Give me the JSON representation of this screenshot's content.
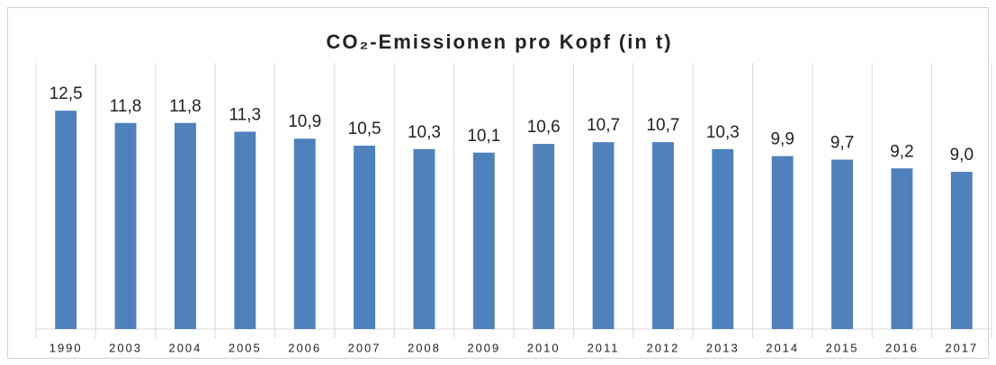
{
  "chart_data": {
    "type": "bar",
    "title": "CO₂-Emissionen pro Kopf (in t)",
    "categories": [
      "1990",
      "2003",
      "2004",
      "2005",
      "2006",
      "2007",
      "2008",
      "2009",
      "2010",
      "2011",
      "2012",
      "2013",
      "2014",
      "2015",
      "2016",
      "2017"
    ],
    "values": [
      12.5,
      11.8,
      11.8,
      11.3,
      10.9,
      10.5,
      10.3,
      10.1,
      10.6,
      10.7,
      10.7,
      10.3,
      9.9,
      9.7,
      9.2,
      9.0
    ],
    "value_labels": [
      "12,5",
      "11,8",
      "11,8",
      "11,3",
      "10,9",
      "10,5",
      "10,3",
      "10,1",
      "10,6",
      "10,7",
      "10,7",
      "10,3",
      "9,9",
      "9,7",
      "9,2",
      "9,0"
    ],
    "color": "#4f81bd",
    "ylim": [
      0,
      14
    ]
  }
}
